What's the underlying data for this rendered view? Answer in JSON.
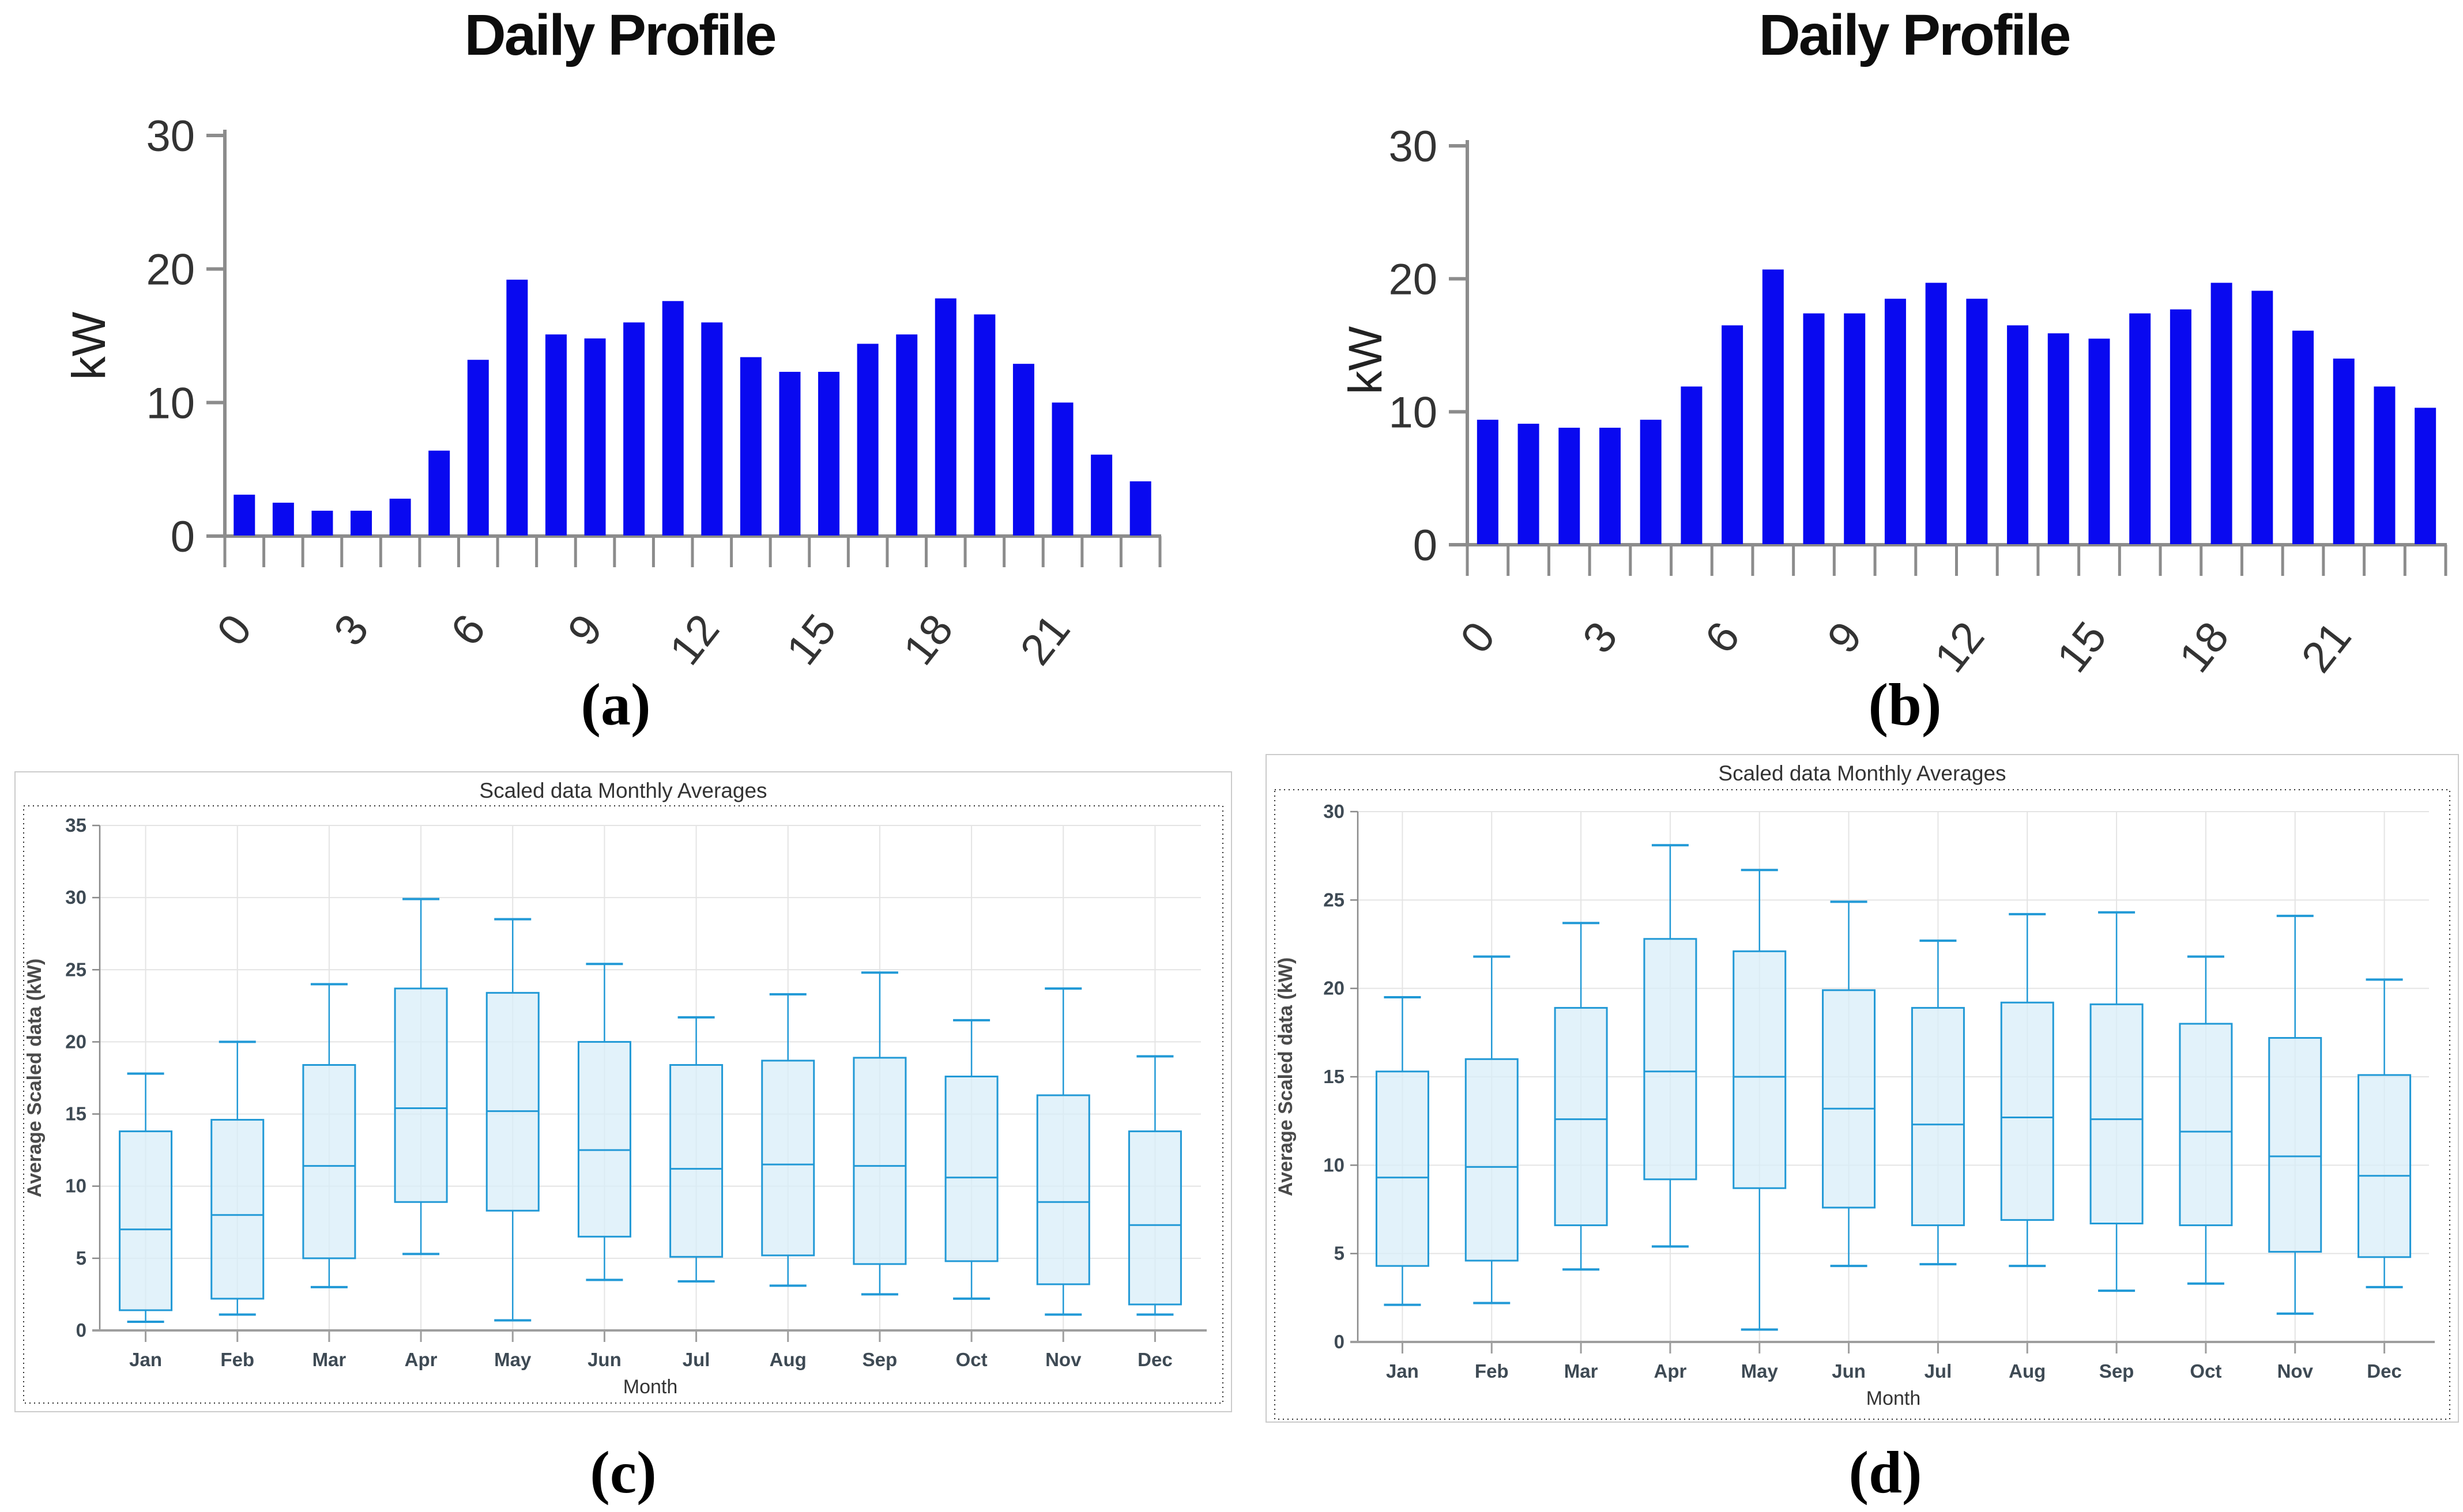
{
  "captions": {
    "a": "(a)",
    "b": "(b)",
    "c": "(c)",
    "d": "(d)"
  },
  "colors": {
    "bar_fill": "#0909f0",
    "bar_axis": "#8c8c8c",
    "bar_tick_label": "#333333",
    "bar_title": "#0d0d0d",
    "box_stroke": "#2199d6",
    "box_fill": "#d8edf8",
    "panel_border": "#cbcbcb",
    "panel_grid": "#e4e4e4",
    "panel_axis": "#9e9e9e",
    "panel_spine": "#8a8a8a",
    "panel_tick_text": "#3e4a54",
    "panel_title": "#333333",
    "panel_ylabel": "#4a4a4a",
    "dotted_border": "#2a2a2a"
  },
  "chart_data": [
    {
      "id": "a",
      "type": "bar",
      "title": "Daily Profile",
      "ylabel": "kW",
      "ylim": [
        0,
        30
      ],
      "yticks": [
        0,
        10,
        20,
        30
      ],
      "x": [
        0,
        1,
        2,
        3,
        4,
        5,
        6,
        7,
        8,
        9,
        10,
        11,
        12,
        13,
        14,
        15,
        16,
        17,
        18,
        19,
        20,
        21,
        22,
        23
      ],
      "xtick_labels": [
        "0",
        "3",
        "6",
        "9",
        "12",
        "15",
        "18",
        "21"
      ],
      "xtick_every": 3,
      "values": [
        3.1,
        2.5,
        1.9,
        1.9,
        2.8,
        6.4,
        13.2,
        19.2,
        15.1,
        14.8,
        16.0,
        17.6,
        16.0,
        13.4,
        12.3,
        12.3,
        14.4,
        15.1,
        17.8,
        16.6,
        12.9,
        10.0,
        6.1,
        4.1
      ]
    },
    {
      "id": "b",
      "type": "bar",
      "title": "Daily Profile",
      "ylabel": "kW",
      "ylim": [
        0,
        30
      ],
      "yticks": [
        0,
        10,
        20,
        30
      ],
      "x": [
        0,
        1,
        2,
        3,
        4,
        5,
        6,
        7,
        8,
        9,
        10,
        11,
        12,
        13,
        14,
        15,
        16,
        17,
        18,
        19,
        20,
        21,
        22,
        23
      ],
      "xtick_labels": [
        "0",
        "3",
        "6",
        "9",
        "12",
        "15",
        "18",
        "21"
      ],
      "xtick_every": 3,
      "values": [
        9.4,
        9.1,
        8.8,
        8.8,
        9.4,
        11.9,
        16.5,
        20.7,
        17.4,
        17.4,
        18.5,
        19.7,
        18.5,
        16.5,
        15.9,
        15.5,
        17.4,
        17.7,
        19.7,
        19.1,
        16.1,
        14.0,
        11.9,
        10.3
      ]
    },
    {
      "id": "c",
      "type": "box",
      "title": "Scaled data Monthly Averages",
      "xlabel": "Month",
      "ylabel": "Average Scaled data (kW)",
      "ylim": [
        0,
        35
      ],
      "yticks": [
        0,
        5,
        10,
        15,
        20,
        25,
        30,
        35
      ],
      "categories": [
        "Jan",
        "Feb",
        "Mar",
        "Apr",
        "May",
        "Jun",
        "Jul",
        "Aug",
        "Sep",
        "Oct",
        "Nov",
        "Dec"
      ],
      "stats": [
        {
          "month": "Jan",
          "whisker_low": 0.6,
          "q1": 1.4,
          "median": 7.0,
          "q3": 13.8,
          "whisker_high": 17.8
        },
        {
          "month": "Feb",
          "whisker_low": 1.1,
          "q1": 2.2,
          "median": 8.0,
          "q3": 14.6,
          "whisker_high": 20.0
        },
        {
          "month": "Mar",
          "whisker_low": 3.0,
          "q1": 5.0,
          "median": 11.4,
          "q3": 18.4,
          "whisker_high": 24.0
        },
        {
          "month": "Apr",
          "whisker_low": 5.3,
          "q1": 8.9,
          "median": 15.4,
          "q3": 23.7,
          "whisker_high": 29.9
        },
        {
          "month": "May",
          "whisker_low": 0.7,
          "q1": 8.3,
          "median": 15.2,
          "q3": 23.4,
          "whisker_high": 28.5
        },
        {
          "month": "Jun",
          "whisker_low": 3.5,
          "q1": 6.5,
          "median": 12.5,
          "q3": 20.0,
          "whisker_high": 25.4
        },
        {
          "month": "Jul",
          "whisker_low": 3.4,
          "q1": 5.1,
          "median": 11.2,
          "q3": 18.4,
          "whisker_high": 21.7
        },
        {
          "month": "Aug",
          "whisker_low": 3.1,
          "q1": 5.2,
          "median": 11.5,
          "q3": 18.7,
          "whisker_high": 23.3
        },
        {
          "month": "Sep",
          "whisker_low": 2.5,
          "q1": 4.6,
          "median": 11.4,
          "q3": 18.9,
          "whisker_high": 24.8
        },
        {
          "month": "Oct",
          "whisker_low": 2.2,
          "q1": 4.8,
          "median": 10.6,
          "q3": 17.6,
          "whisker_high": 21.5
        },
        {
          "month": "Nov",
          "whisker_low": 1.1,
          "q1": 3.2,
          "median": 8.9,
          "q3": 16.3,
          "whisker_high": 23.7
        },
        {
          "month": "Dec",
          "whisker_low": 1.1,
          "q1": 1.8,
          "median": 7.3,
          "q3": 13.8,
          "whisker_high": 19.0
        }
      ]
    },
    {
      "id": "d",
      "type": "box",
      "title": "Scaled data Monthly Averages",
      "xlabel": "Month",
      "ylabel": "Average Scaled data (kW)",
      "ylim": [
        0,
        30
      ],
      "yticks": [
        0,
        5,
        10,
        15,
        20,
        25,
        30
      ],
      "categories": [
        "Jan",
        "Feb",
        "Mar",
        "Apr",
        "May",
        "Jun",
        "Jul",
        "Aug",
        "Sep",
        "Oct",
        "Nov",
        "Dec"
      ],
      "stats": [
        {
          "month": "Jan",
          "whisker_low": 2.1,
          "q1": 4.3,
          "median": 9.3,
          "q3": 15.3,
          "whisker_high": 19.5
        },
        {
          "month": "Feb",
          "whisker_low": 2.2,
          "q1": 4.6,
          "median": 9.9,
          "q3": 16.0,
          "whisker_high": 21.8
        },
        {
          "month": "Mar",
          "whisker_low": 4.1,
          "q1": 6.6,
          "median": 12.6,
          "q3": 18.9,
          "whisker_high": 23.7
        },
        {
          "month": "Apr",
          "whisker_low": 5.4,
          "q1": 9.2,
          "median": 15.3,
          "q3": 22.8,
          "whisker_high": 28.1
        },
        {
          "month": "May",
          "whisker_low": 0.7,
          "q1": 8.7,
          "median": 15.0,
          "q3": 22.1,
          "whisker_high": 26.7
        },
        {
          "month": "Jun",
          "whisker_low": 4.3,
          "q1": 7.6,
          "median": 13.2,
          "q3": 19.9,
          "whisker_high": 24.9
        },
        {
          "month": "Jul",
          "whisker_low": 4.4,
          "q1": 6.6,
          "median": 12.3,
          "q3": 18.9,
          "whisker_high": 22.7
        },
        {
          "month": "Aug",
          "whisker_low": 4.3,
          "q1": 6.9,
          "median": 12.7,
          "q3": 19.2,
          "whisker_high": 24.2
        },
        {
          "month": "Sep",
          "whisker_low": 2.9,
          "q1": 6.7,
          "median": 12.6,
          "q3": 19.1,
          "whisker_high": 24.3
        },
        {
          "month": "Oct",
          "whisker_low": 3.3,
          "q1": 6.6,
          "median": 11.9,
          "q3": 18.0,
          "whisker_high": 21.8
        },
        {
          "month": "Nov",
          "whisker_low": 1.6,
          "q1": 5.1,
          "median": 10.5,
          "q3": 17.2,
          "whisker_high": 24.1
        },
        {
          "month": "Dec",
          "whisker_low": 3.1,
          "q1": 4.8,
          "median": 9.4,
          "q3": 15.1,
          "whisker_high": 20.5
        }
      ]
    }
  ]
}
